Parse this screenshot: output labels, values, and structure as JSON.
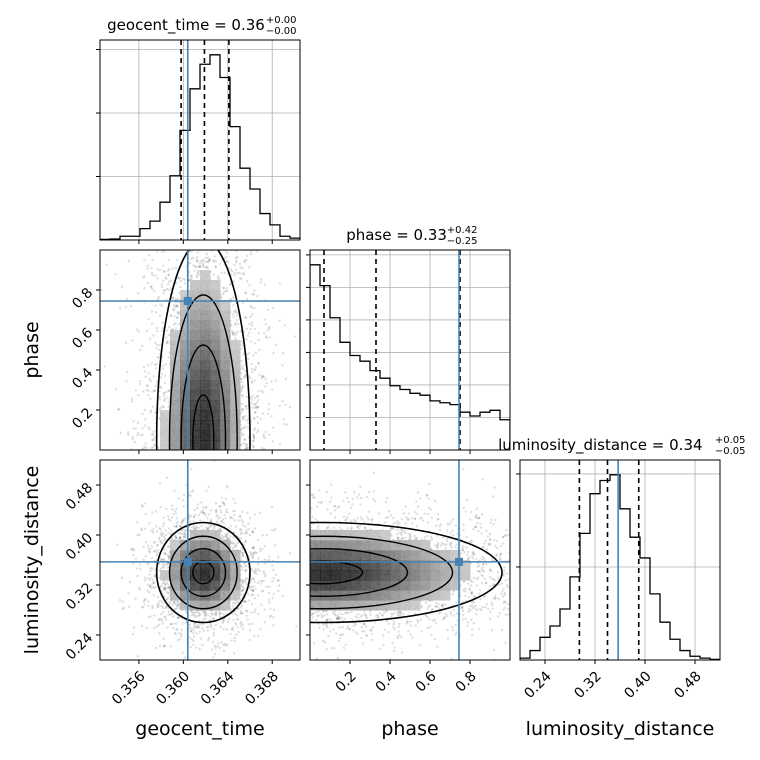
{
  "chart_data": {
    "type": "corner",
    "parameters": [
      {
        "name": "geocent_time",
        "axis_label": "geocent_time",
        "range": [
          0.3525,
          0.3705
        ],
        "ticks": [
          0.356,
          0.36,
          0.364,
          0.368
        ],
        "tick_labels": [
          "0.356",
          "0.360",
          "0.364",
          "0.368"
        ],
        "truth": 0.3604,
        "quantiles": [
          0.3598,
          0.3619,
          0.3641
        ],
        "title": {
          "main": "geocent_time = 0.36",
          "plus": "+0.00",
          "minus": "−0.00"
        },
        "hist": [
          0.003,
          0.005,
          0.02,
          0.02,
          0.06,
          0.1,
          0.2,
          0.34,
          0.58,
          0.8,
          0.93,
          0.98,
          0.86,
          0.6,
          0.38,
          0.27,
          0.14,
          0.08,
          0.02,
          0.01
        ],
        "hist_max_ticks": 3
      },
      {
        "name": "phase",
        "axis_label": "phase",
        "range": [
          0.0,
          1.0
        ],
        "ticks": [
          0.2,
          0.4,
          0.6,
          0.8
        ],
        "tick_labels": [
          "0.2",
          "0.4",
          "0.6",
          "0.8"
        ],
        "truth": 0.745,
        "quantiles": [
          0.07,
          0.33,
          0.75
        ],
        "title": {
          "main": "phase = 0.33",
          "plus": "+0.42",
          "minus": "−0.25"
        },
        "hist": [
          0.98,
          0.87,
          0.7,
          0.57,
          0.5,
          0.47,
          0.42,
          0.38,
          0.34,
          0.32,
          0.3,
          0.29,
          0.26,
          0.25,
          0.24,
          0.2,
          0.18,
          0.2,
          0.21,
          0.16
        ],
        "hist_max_ticks": 6
      },
      {
        "name": "luminosity_distance",
        "axis_label": "luminosity_distance",
        "range": [
          0.2,
          0.52
        ],
        "ticks": [
          0.24,
          0.32,
          0.4,
          0.48
        ],
        "tick_labels": [
          "0.24",
          "0.32",
          "0.40",
          "0.48"
        ],
        "truth": 0.357,
        "quantiles": [
          0.295,
          0.34,
          0.39
        ],
        "title": {
          "main": "luminosity_distance = 0.34",
          "plus": "+0.05",
          "minus": "−0.05"
        },
        "hist": [
          0.01,
          0.05,
          0.12,
          0.18,
          0.27,
          0.44,
          0.67,
          0.88,
          0.95,
          0.98,
          0.8,
          0.65,
          0.54,
          0.35,
          0.2,
          0.11,
          0.05,
          0.02,
          0.01,
          0.003
        ],
        "hist_max_ticks": 2
      }
    ],
    "truth_color": "#4682b4",
    "line_color": "#000000",
    "grid": true,
    "density_center": {
      "geocent_time": 0.3618,
      "phase": 0.05,
      "luminosity_distance": 0.34
    }
  }
}
